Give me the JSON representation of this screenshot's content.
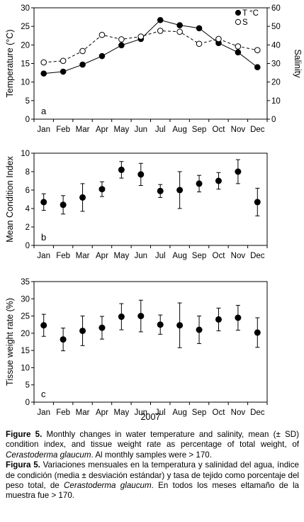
{
  "months": [
    "Jan",
    "Feb",
    "Mar",
    "Apr",
    "May",
    "Jun",
    "Jul",
    "Aug",
    "Sep",
    "Oct",
    "Nov",
    "Dec"
  ],
  "year_label": "2007",
  "chart_data": [
    {
      "type": "line",
      "panel": "a",
      "ylabel": "Temperature (°C)",
      "ylim": [
        0,
        30
      ],
      "yticks": [
        0,
        5,
        10,
        15,
        20,
        25,
        30
      ],
      "y2label": "Salinity",
      "y2lim": [
        0,
        60
      ],
      "y2ticks": [
        0,
        10,
        20,
        30,
        40,
        50,
        60
      ],
      "legend_position": "top-right",
      "series": [
        {
          "name": "T °C",
          "axis": "left",
          "marker": "filled",
          "line": "solid",
          "values": [
            12.3,
            12.8,
            14.7,
            17.0,
            19.9,
            21.6,
            26.7,
            25.3,
            24.5,
            20.5,
            18.0,
            14.0
          ]
        },
        {
          "name": "S",
          "axis": "right",
          "marker": "open",
          "line": "dashed",
          "values": [
            30.6,
            31.4,
            36.7,
            45.4,
            43.0,
            44.5,
            47.6,
            47.1,
            40.6,
            43.2,
            39.2,
            37.2
          ]
        }
      ]
    },
    {
      "type": "scatter",
      "panel": "b",
      "ylabel": "Mean Condition Index",
      "ylim": [
        0,
        10
      ],
      "yticks": [
        0,
        2,
        4,
        6,
        8,
        10
      ],
      "series": [
        {
          "values": [
            4.7,
            4.4,
            5.2,
            6.1,
            8.2,
            7.7,
            5.9,
            6.0,
            6.7,
            7.0,
            8.0,
            4.7
          ],
          "sd": [
            0.9,
            1.0,
            1.5,
            0.8,
            0.9,
            1.2,
            0.7,
            2.0,
            0.9,
            0.9,
            1.3,
            1.5
          ]
        }
      ]
    },
    {
      "type": "scatter",
      "panel": "c",
      "ylabel": "Tissue weight rate (%)",
      "ylim": [
        0,
        35
      ],
      "yticks": [
        0,
        5,
        10,
        15,
        20,
        25,
        30,
        35
      ],
      "series": [
        {
          "values": [
            22.3,
            18.2,
            20.7,
            21.6,
            24.8,
            25.0,
            22.5,
            22.3,
            21.0,
            24.0,
            24.5,
            20.2
          ],
          "sd": [
            3.2,
            3.3,
            4.3,
            3.3,
            3.8,
            4.6,
            2.8,
            6.5,
            4.0,
            3.3,
            3.6,
            4.3
          ]
        }
      ]
    }
  ],
  "caption": {
    "en_label": "Figure 5.",
    "en_text_1": " Monthly changes in water temperature and salinity, mean (± SD) condition index, and tissue weight rate as percentage of total weight, of ",
    "en_species": "Cerastoderma glaucum",
    "en_text_2": ". Al monthly samples were > 170.",
    "es_label": "Figura 5.",
    "es_text_1": " Variaciones mensuales en la temperatura y salinidad del agua, índice de condición (media ± desviación estándar) y tasa de tejido como porcentaje del peso total, de ",
    "es_species": "Cerastoderma glaucum",
    "es_text_2": ". En todos los meses eltamaño de la muestra fue > 170."
  }
}
